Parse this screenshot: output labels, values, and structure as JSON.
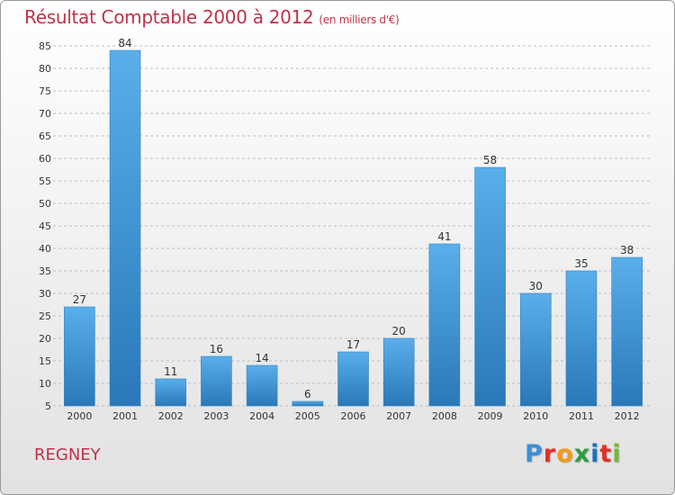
{
  "header": {
    "title": "Résultat Comptable 2000 à 2012",
    "subtitle": "(en milliers d'€)"
  },
  "place": "REGNEY",
  "logo": {
    "text": "Proxiti",
    "letter_colors": [
      "#3a8fd8",
      "#e0302a",
      "#f29a1a",
      "#2f9e3c",
      "#1f6fc2",
      "#e0302a",
      "#7ab82e"
    ]
  },
  "colors": {
    "title": "#c0324a",
    "bar_top": "#5aaeea",
    "bar_bottom": "#2a78b8",
    "grid": "#bdbdbd",
    "axis_text": "#333333"
  },
  "chart_data": {
    "type": "bar",
    "title": "Résultat Comptable 2000 à 2012",
    "subtitle": "(en milliers d'€)",
    "xlabel": "",
    "ylabel": "",
    "categories": [
      "2000",
      "2001",
      "2002",
      "2003",
      "2004",
      "2005",
      "2006",
      "2007",
      "2008",
      "2009",
      "2010",
      "2011",
      "2012"
    ],
    "values": [
      27,
      84,
      11,
      16,
      14,
      6,
      17,
      20,
      41,
      58,
      30,
      35,
      38
    ],
    "ylim": [
      5,
      85
    ],
    "yticks": [
      5,
      10,
      15,
      20,
      25,
      30,
      35,
      40,
      45,
      50,
      55,
      60,
      65,
      70,
      75,
      80,
      85
    ],
    "grid": true,
    "legend": "none"
  }
}
